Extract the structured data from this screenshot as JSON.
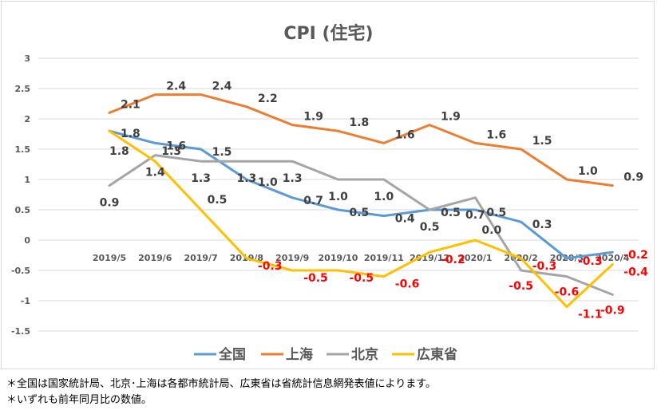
{
  "chart_data": {
    "type": "line",
    "title": "CPI (住宅)",
    "xlabel": "",
    "ylabel": "",
    "ylim": [
      -1.5,
      3
    ],
    "yticks": [
      "3",
      "2.5",
      "2",
      "1.5",
      "1",
      "0.5",
      "0",
      "-0.5",
      "-1",
      "-1.5"
    ],
    "ytick_values": [
      3,
      2.5,
      2,
      1.5,
      1,
      0.5,
      0,
      -0.5,
      -1,
      -1.5
    ],
    "categories": [
      "2019/5",
      "2019/6",
      "2019/7",
      "2019/8",
      "2019/9",
      "2019/10",
      "2019/11",
      "2019/12",
      "2020/1",
      "2020/2",
      "2020/3",
      "2020/4"
    ],
    "grid": true,
    "legend_position": "bottom",
    "series": [
      {
        "name": "全国",
        "color": "#5b9bd5",
        "values": [
          1.8,
          1.6,
          1.5,
          1.0,
          0.7,
          0.5,
          0.4,
          0.5,
          0.5,
          0.3,
          -0.3,
          -0.2
        ],
        "labels": [
          "1.8",
          "1.6",
          "1.5",
          "1.0",
          "0.7",
          "0.5",
          "0.4",
          "0.5",
          "0.5",
          "0.3",
          "-0.3",
          "-0.2"
        ]
      },
      {
        "name": "上海",
        "color": "#ed7d31",
        "values": [
          2.1,
          2.4,
          2.4,
          2.2,
          1.9,
          1.8,
          1.6,
          1.9,
          1.6,
          1.5,
          1.0,
          0.9
        ],
        "labels": [
          "2.1",
          "2.4",
          "2.4",
          "2.2",
          "1.9",
          "1.8",
          "1.6",
          "1.9",
          "1.6",
          "1.5",
          "1.0",
          "0.9"
        ]
      },
      {
        "name": "北京",
        "color": "#a5a5a5",
        "values": [
          0.9,
          1.4,
          1.3,
          1.3,
          1.3,
          1.0,
          1.0,
          0.5,
          0.7,
          -0.5,
          -0.6,
          -0.9
        ],
        "labels": [
          "0.9",
          "1.4",
          "1.3",
          "1.3",
          "1.3",
          "1.0",
          "1.0",
          "0.5",
          "0.7",
          "-0.5",
          "-0.6",
          "-0.9"
        ]
      },
      {
        "name": "広東省",
        "color": "#ffc000",
        "values": [
          1.8,
          1.3,
          0.5,
          -0.3,
          -0.5,
          -0.5,
          -0.6,
          -0.2,
          0.0,
          -0.3,
          -1.1,
          -0.4
        ],
        "labels": [
          "1.8",
          "1.3",
          "0.5",
          "-0.3",
          "-0.5",
          "-0.5",
          "-0.6",
          "-0.2",
          "0.0",
          "-0.3",
          "-1.1",
          "-0.4"
        ]
      }
    ],
    "label_color_positive": "#404040",
    "label_color_negative": "#ff0000"
  },
  "notes": [
    "＊全国は国家統計局、北京･上海は各都市統計局、広東省は省統計信息網発表値によります。",
    "＊いずれも前年同月比の数値。"
  ]
}
